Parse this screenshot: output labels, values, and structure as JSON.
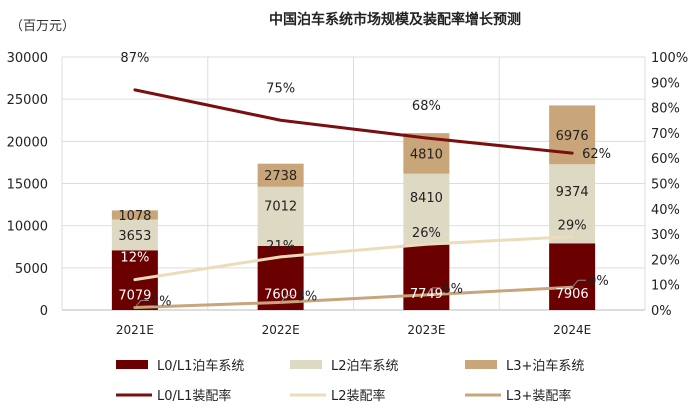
{
  "chart_data": {
    "type": "bar",
    "title": "中国泊车系统市场规模及装配率增长预测",
    "unit_label": "（百万元）",
    "categories": [
      "2021E",
      "2022E",
      "2023E",
      "2024E"
    ],
    "left_axis": {
      "ylim": [
        0,
        30000
      ],
      "ticks": [
        "0",
        "5000",
        "10000",
        "15000",
        "20000",
        "25000",
        "30000"
      ]
    },
    "right_axis": {
      "ylim": [
        0,
        100
      ],
      "ticks": [
        "0%",
        "10%",
        "20%",
        "30%",
        "40%",
        "50%",
        "60%",
        "70%",
        "80%",
        "90%",
        "100%"
      ]
    },
    "grid": true,
    "legend_position": "bottom",
    "bar_series": [
      {
        "name": "L0/L1泊车系统",
        "values": [
          7079,
          7600,
          7749,
          7906
        ],
        "color": "#6b0000"
      },
      {
        "name": "L2泊车系统",
        "values": [
          3653,
          7012,
          8410,
          9374
        ],
        "color": "#ddd9c3"
      },
      {
        "name": "L3+泊车系统",
        "values": [
          1078,
          2738,
          4810,
          6976
        ],
        "color": "#c9a57a"
      }
    ],
    "line_series": [
      {
        "name": "L0/L1装配率",
        "values": [
          87,
          75,
          68,
          62
        ],
        "labels": [
          "87%",
          "75%",
          "68%",
          "62%"
        ],
        "color": "#7a0f0f"
      },
      {
        "name": "L2装配率",
        "values": [
          12,
          21,
          26,
          29
        ],
        "labels": [
          "12%",
          "21%",
          "26%",
          "29%"
        ],
        "color": "#ecdcba"
      },
      {
        "name": "L3+装配率",
        "values": [
          1,
          3,
          6,
          9
        ],
        "labels": [
          "1%",
          "3%",
          "6%",
          "9%"
        ],
        "color": "#c9a57a"
      }
    ]
  }
}
